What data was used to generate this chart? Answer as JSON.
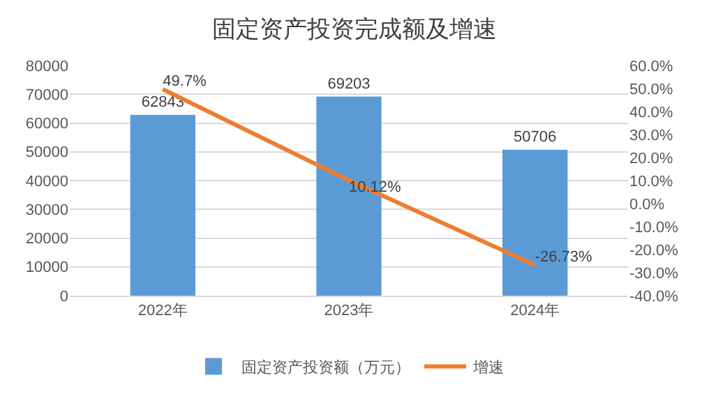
{
  "chart_data": {
    "type": "bar",
    "title": "固定资产投资完成额及增速",
    "categories": [
      "2022年",
      "2023年",
      "2024年"
    ],
    "series": [
      {
        "name": "固定资产投资额（万元）",
        "color": "#5b9bd5",
        "values": [
          62843,
          69203,
          50706
        ],
        "value_labels": [
          "62843",
          "69203",
          "50706"
        ]
      },
      {
        "name": "增速",
        "type": "line",
        "axis": "y2",
        "color": "#ed7d31",
        "values": [
          49.7,
          10.12,
          -26.73
        ],
        "value_labels": [
          "49.7%",
          "10.12%",
          "-26.73%"
        ]
      }
    ],
    "ylim": [
      0,
      80000
    ],
    "yticks": [
      0,
      10000,
      20000,
      30000,
      40000,
      50000,
      60000,
      70000,
      80000
    ],
    "y2lim": [
      -40,
      60
    ],
    "y2ticks": [
      {
        "value": -40,
        "label": "-40.0%"
      },
      {
        "value": -30,
        "label": "-30.0%"
      },
      {
        "value": -20,
        "label": "-20.0%"
      },
      {
        "value": -10,
        "label": "-10.0%"
      },
      {
        "value": 0,
        "label": "0.0%"
      },
      {
        "value": 10,
        "label": "10.0%"
      },
      {
        "value": 20,
        "label": "20.0%"
      },
      {
        "value": 30,
        "label": "30.0%"
      },
      {
        "value": 40,
        "label": "40.0%"
      },
      {
        "value": 50,
        "label": "50.0%"
      },
      {
        "value": 60,
        "label": "60.0%"
      }
    ],
    "grid": "y",
    "legend": "bottom",
    "marker": "none",
    "line_style": "solid"
  }
}
